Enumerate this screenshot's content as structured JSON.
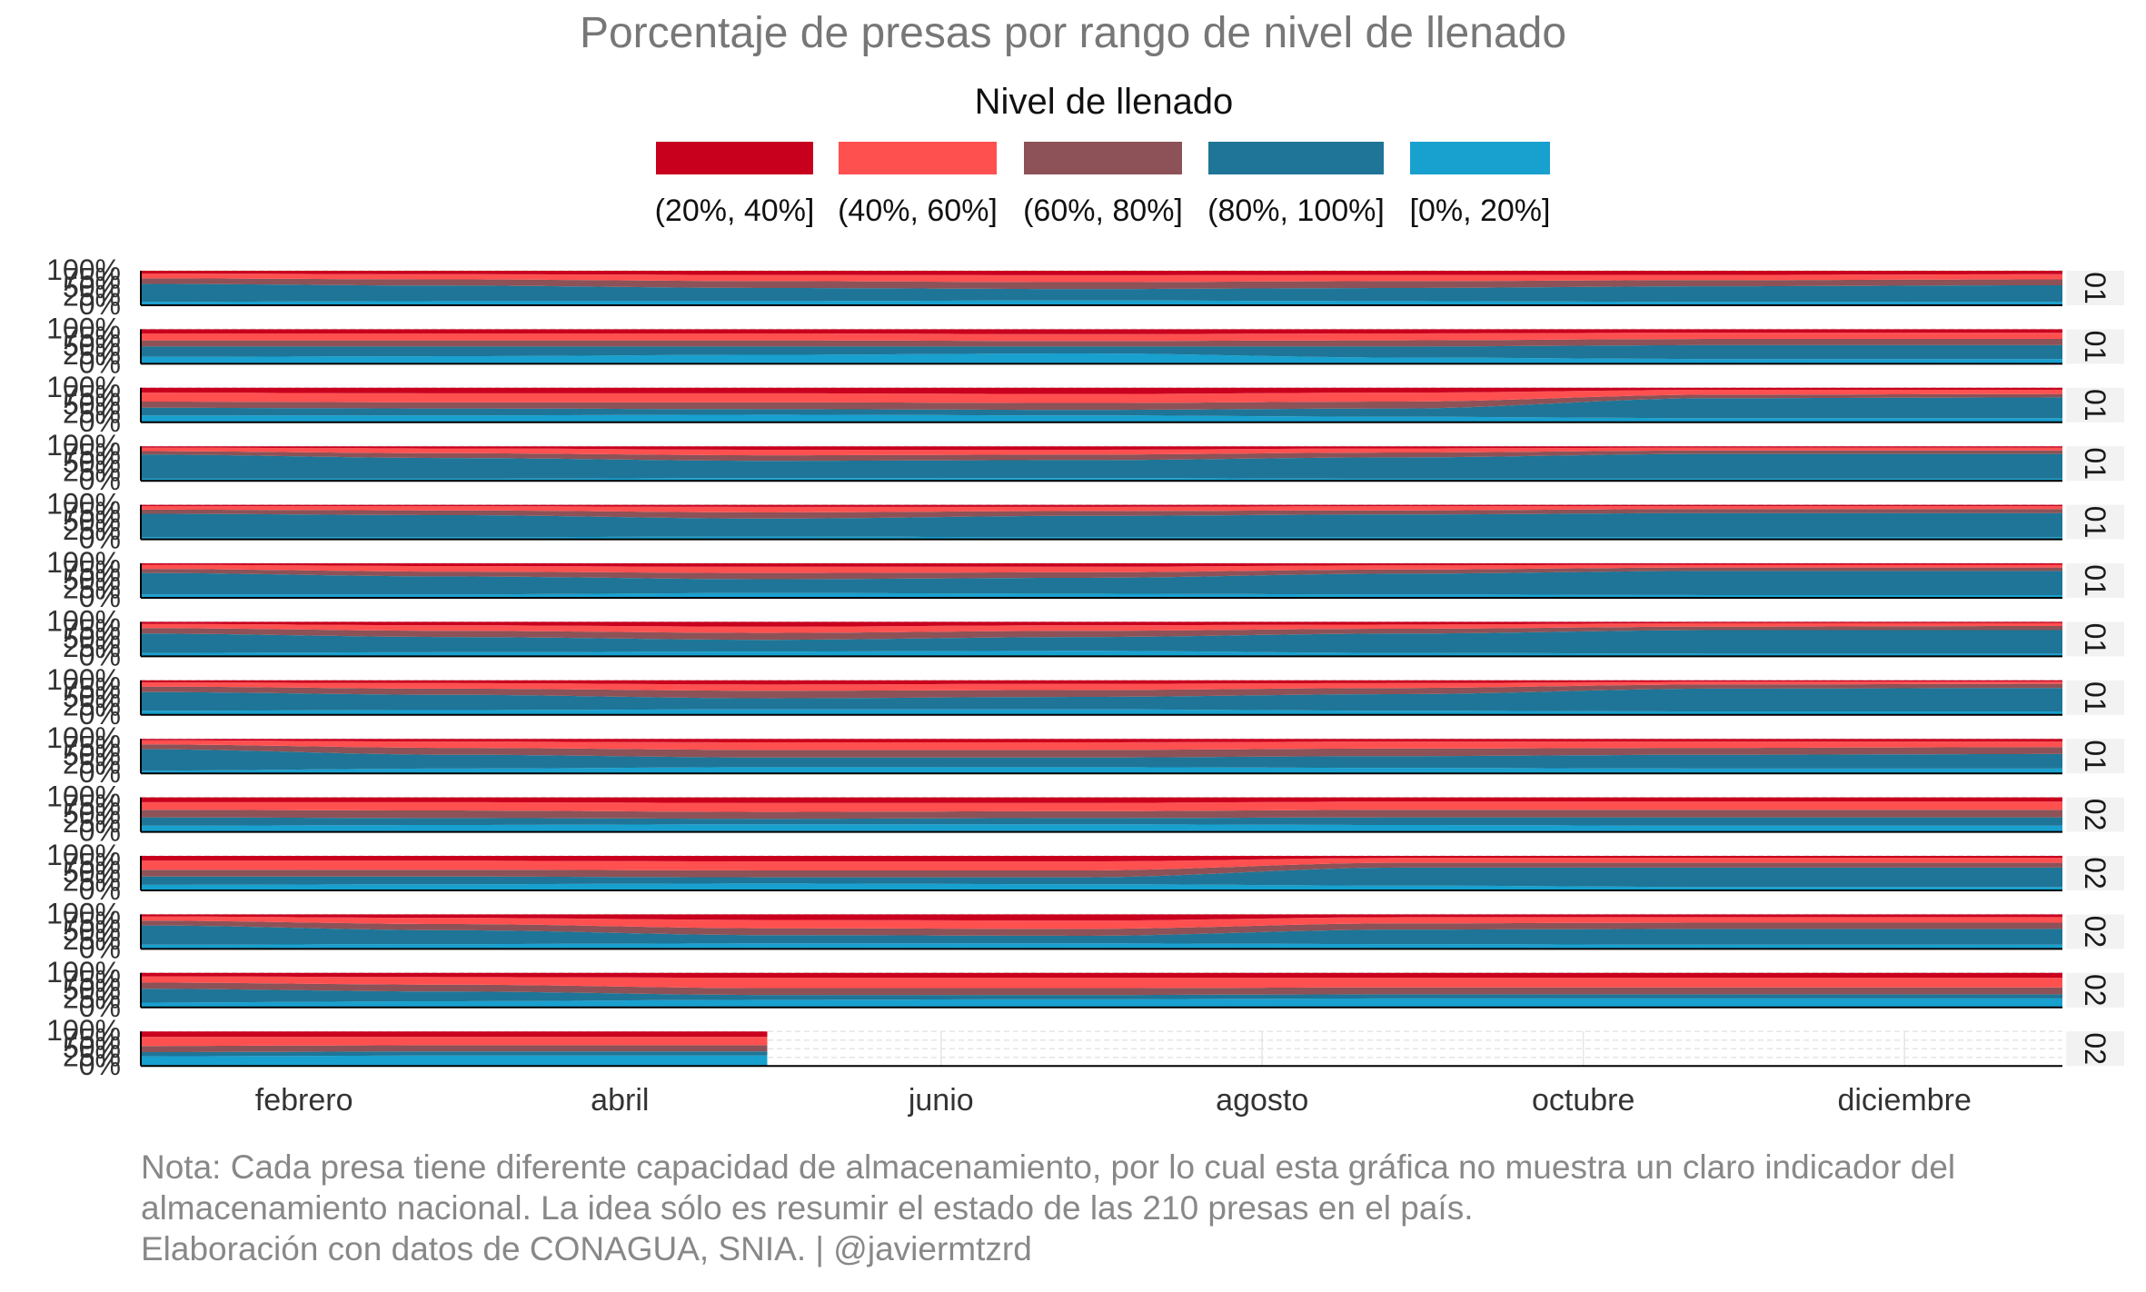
{
  "chart_data": {
    "type": "area",
    "title": "Porcentaje de presas por rango de nivel de llenado",
    "legend": {
      "title": "Nivel de llenado",
      "position": "top",
      "order": [
        "(20%, 40%]",
        "(40%, 60%]",
        "(60%, 80%]",
        "(80%, 100%]",
        "[0%, 20%]"
      ],
      "colors": {
        "(20%, 40%]": "#C8001E",
        "(40%, 60%]": "#FF5050",
        "(60%, 80%]": "#8C5257",
        "(80%, 100%]": "#1E7597",
        "[0%, 20%]": "#18A0CF"
      }
    },
    "stack_order_bottom_to_top": [
      "[0%, 20%]",
      "(80%, 100%]",
      "(60%, 80%]",
      "(40%, 60%]",
      "(20%, 40%]"
    ],
    "x_ticks": [
      "febrero",
      "abril",
      "junio",
      "agosto",
      "octubre",
      "diciembre"
    ],
    "y_ticks": [
      "0%",
      "25%",
      "50%",
      "75%",
      "100%"
    ],
    "ylim": [
      0,
      1
    ],
    "grid": true,
    "x_knots_day_of_year": [
      1,
      60,
      120,
      180,
      240,
      300,
      366
    ],
    "facet_strip_labels": [
      "01",
      "01",
      "01",
      "01",
      "01",
      "01",
      "01",
      "01",
      "01",
      "02",
      "02",
      "02",
      "02",
      "02"
    ],
    "panels": [
      {
        "end_day": 366,
        "series": {
          "[0%, 20%]": [
            0.1,
            0.12,
            0.12,
            0.14,
            0.12,
            0.1,
            0.1
          ],
          "(80%, 100%]": [
            0.52,
            0.45,
            0.38,
            0.33,
            0.38,
            0.45,
            0.48
          ],
          "(60%, 80%]": [
            0.16,
            0.18,
            0.2,
            0.2,
            0.2,
            0.18,
            0.17
          ],
          "(40%, 60%]": [
            0.14,
            0.15,
            0.18,
            0.2,
            0.18,
            0.15,
            0.15
          ],
          "(20%, 40%]": [
            0.08,
            0.1,
            0.12,
            0.13,
            0.12,
            0.12,
            0.1
          ]
        }
      },
      {
        "end_day": 366,
        "series": {
          "[0%, 20%]": [
            0.2,
            0.22,
            0.26,
            0.3,
            0.18,
            0.14,
            0.14
          ],
          "(80%, 100%]": [
            0.3,
            0.28,
            0.24,
            0.2,
            0.32,
            0.4,
            0.4
          ],
          "(60%, 80%]": [
            0.18,
            0.18,
            0.18,
            0.16,
            0.18,
            0.18,
            0.18
          ],
          "(40%, 60%]": [
            0.2,
            0.2,
            0.2,
            0.2,
            0.2,
            0.18,
            0.18
          ],
          "(20%, 40%]": [
            0.12,
            0.12,
            0.12,
            0.14,
            0.12,
            0.1,
            0.1
          ]
        }
      },
      {
        "end_day": 366,
        "series": {
          "[0%, 20%]": [
            0.2,
            0.2,
            0.22,
            0.2,
            0.16,
            0.12,
            0.12
          ],
          "(80%, 100%]": [
            0.22,
            0.2,
            0.16,
            0.16,
            0.24,
            0.58,
            0.6
          ],
          "(60%, 80%]": [
            0.18,
            0.18,
            0.2,
            0.2,
            0.2,
            0.1,
            0.1
          ],
          "(40%, 60%]": [
            0.26,
            0.26,
            0.26,
            0.26,
            0.26,
            0.14,
            0.12
          ],
          "(20%, 40%]": [
            0.14,
            0.16,
            0.16,
            0.18,
            0.14,
            0.06,
            0.06
          ]
        }
      },
      {
        "end_day": 366,
        "series": {
          "[0%, 20%]": [
            0.06,
            0.06,
            0.08,
            0.08,
            0.06,
            0.06,
            0.06
          ],
          "(80%, 100%]": [
            0.7,
            0.6,
            0.5,
            0.52,
            0.62,
            0.72,
            0.72
          ],
          "(60%, 80%]": [
            0.1,
            0.14,
            0.16,
            0.16,
            0.14,
            0.1,
            0.1
          ],
          "(40%, 60%]": [
            0.1,
            0.14,
            0.16,
            0.14,
            0.12,
            0.08,
            0.08
          ],
          "(20%, 40%]": [
            0.04,
            0.06,
            0.1,
            0.1,
            0.06,
            0.04,
            0.04
          ]
        }
      },
      {
        "end_day": 366,
        "series": {
          "[0%, 20%]": [
            0.06,
            0.06,
            0.08,
            0.06,
            0.06,
            0.06,
            0.06
          ],
          "(80%, 100%]": [
            0.68,
            0.64,
            0.52,
            0.62,
            0.66,
            0.7,
            0.7
          ],
          "(60%, 80%]": [
            0.12,
            0.14,
            0.18,
            0.14,
            0.12,
            0.12,
            0.12
          ],
          "(40%, 60%]": [
            0.1,
            0.12,
            0.16,
            0.12,
            0.12,
            0.08,
            0.08
          ],
          "(20%, 40%]": [
            0.04,
            0.04,
            0.06,
            0.06,
            0.04,
            0.04,
            0.04
          ]
        }
      },
      {
        "end_day": 366,
        "series": {
          "[0%, 20%]": [
            0.1,
            0.1,
            0.14,
            0.12,
            0.1,
            0.08,
            0.08
          ],
          "(80%, 100%]": [
            0.62,
            0.52,
            0.4,
            0.46,
            0.6,
            0.7,
            0.7
          ],
          "(60%, 80%]": [
            0.12,
            0.14,
            0.18,
            0.16,
            0.12,
            0.1,
            0.1
          ],
          "(40%, 60%]": [
            0.12,
            0.16,
            0.18,
            0.16,
            0.12,
            0.08,
            0.08
          ],
          "(20%, 40%]": [
            0.04,
            0.08,
            0.1,
            0.1,
            0.06,
            0.04,
            0.04
          ]
        }
      },
      {
        "end_day": 366,
        "series": {
          "[0%, 20%]": [
            0.1,
            0.12,
            0.14,
            0.16,
            0.1,
            0.08,
            0.08
          ],
          "(80%, 100%]": [
            0.56,
            0.44,
            0.34,
            0.4,
            0.56,
            0.68,
            0.68
          ],
          "(60%, 80%]": [
            0.16,
            0.18,
            0.2,
            0.18,
            0.14,
            0.1,
            0.12
          ],
          "(40%, 60%]": [
            0.12,
            0.16,
            0.18,
            0.16,
            0.12,
            0.1,
            0.08
          ],
          "(20%, 40%]": [
            0.06,
            0.1,
            0.14,
            0.1,
            0.08,
            0.04,
            0.04
          ]
        }
      },
      {
        "end_day": 366,
        "series": {
          "[0%, 20%]": [
            0.12,
            0.14,
            0.16,
            0.16,
            0.12,
            0.1,
            0.1
          ],
          "(80%, 100%]": [
            0.54,
            0.44,
            0.32,
            0.36,
            0.48,
            0.66,
            0.68
          ],
          "(60%, 80%]": [
            0.16,
            0.18,
            0.22,
            0.2,
            0.18,
            0.12,
            0.12
          ],
          "(40%, 60%]": [
            0.12,
            0.16,
            0.18,
            0.18,
            0.14,
            0.08,
            0.06
          ],
          "(20%, 40%]": [
            0.06,
            0.08,
            0.12,
            0.1,
            0.08,
            0.04,
            0.04
          ]
        }
      },
      {
        "end_day": 366,
        "series": {
          "[0%, 20%]": [
            0.08,
            0.14,
            0.18,
            0.18,
            0.16,
            0.14,
            0.14
          ],
          "(80%, 100%]": [
            0.62,
            0.4,
            0.28,
            0.28,
            0.34,
            0.4,
            0.42
          ],
          "(60%, 80%]": [
            0.14,
            0.2,
            0.22,
            0.22,
            0.22,
            0.2,
            0.2
          ],
          "(40%, 60%]": [
            0.12,
            0.18,
            0.22,
            0.22,
            0.2,
            0.18,
            0.16
          ],
          "(20%, 40%]": [
            0.04,
            0.08,
            0.1,
            0.1,
            0.08,
            0.08,
            0.08
          ]
        }
      },
      {
        "end_day": 366,
        "series": {
          "[0%, 20%]": [
            0.18,
            0.2,
            0.22,
            0.22,
            0.2,
            0.18,
            0.18
          ],
          "(80%, 100%]": [
            0.24,
            0.2,
            0.16,
            0.18,
            0.22,
            0.24,
            0.24
          ],
          "(60%, 80%]": [
            0.22,
            0.22,
            0.2,
            0.2,
            0.22,
            0.22,
            0.22
          ],
          "(40%, 60%]": [
            0.22,
            0.24,
            0.26,
            0.24,
            0.24,
            0.24,
            0.24
          ],
          "(20%, 40%]": [
            0.14,
            0.14,
            0.16,
            0.16,
            0.12,
            0.12,
            0.12
          ]
        }
      },
      {
        "end_day": 366,
        "series": {
          "[0%, 20%]": [
            0.16,
            0.18,
            0.2,
            0.18,
            0.14,
            0.1,
            0.1
          ],
          "(80%, 100%]": [
            0.24,
            0.22,
            0.18,
            0.2,
            0.52,
            0.56,
            0.56
          ],
          "(60%, 80%]": [
            0.2,
            0.2,
            0.2,
            0.2,
            0.14,
            0.14,
            0.14
          ],
          "(40%, 60%]": [
            0.26,
            0.26,
            0.26,
            0.26,
            0.14,
            0.14,
            0.14
          ],
          "(20%, 40%]": [
            0.14,
            0.14,
            0.16,
            0.16,
            0.06,
            0.06,
            0.06
          ]
        }
      },
      {
        "end_day": 366,
        "series": {
          "[0%, 20%]": [
            0.12,
            0.14,
            0.16,
            0.16,
            0.14,
            0.12,
            0.12
          ],
          "(80%, 100%]": [
            0.56,
            0.4,
            0.24,
            0.22,
            0.42,
            0.46,
            0.46
          ],
          "(60%, 80%]": [
            0.14,
            0.18,
            0.2,
            0.2,
            0.18,
            0.18,
            0.18
          ],
          "(40%, 60%]": [
            0.12,
            0.18,
            0.24,
            0.24,
            0.18,
            0.16,
            0.16
          ],
          "(20%, 40%]": [
            0.06,
            0.1,
            0.16,
            0.18,
            0.08,
            0.08,
            0.08
          ]
        }
      },
      {
        "end_day": 366,
        "series": {
          "[0%, 20%]": [
            0.14,
            0.18,
            0.22,
            0.24,
            0.26,
            0.26,
            0.26
          ],
          "(80%, 100%]": [
            0.4,
            0.28,
            0.14,
            0.12,
            0.12,
            0.12,
            0.12
          ],
          "(60%, 80%]": [
            0.18,
            0.2,
            0.2,
            0.2,
            0.2,
            0.2,
            0.2
          ],
          "(40%, 60%]": [
            0.18,
            0.22,
            0.3,
            0.3,
            0.28,
            0.28,
            0.28
          ],
          "(20%, 40%]": [
            0.1,
            0.12,
            0.14,
            0.14,
            0.14,
            0.14,
            0.14
          ]
        }
      },
      {
        "end_day": 120,
        "series": {
          "[0%, 20%]": [
            0.28,
            0.3,
            0.3,
            0,
            0,
            0,
            0
          ],
          "(80%, 100%]": [
            0.12,
            0.12,
            0.12,
            0,
            0,
            0,
            0
          ],
          "(60%, 80%]": [
            0.18,
            0.18,
            0.18,
            0,
            0,
            0,
            0
          ],
          "(40%, 60%]": [
            0.26,
            0.24,
            0.24,
            0,
            0,
            0,
            0
          ],
          "(20%, 40%]": [
            0.16,
            0.16,
            0.16,
            0,
            0,
            0,
            0
          ]
        }
      }
    ],
    "annotations": [
      "Nota: Cada presa tiene diferente capacidad de almacenamiento, por lo cual esta gráfica no muestra un claro indicador del",
      "almacenamiento nacional. La idea sólo es resumir el estado de las 210 presas en el país.",
      "Elaboración con datos de CONAGUA, SNIA. | @javiermtzrd"
    ]
  }
}
